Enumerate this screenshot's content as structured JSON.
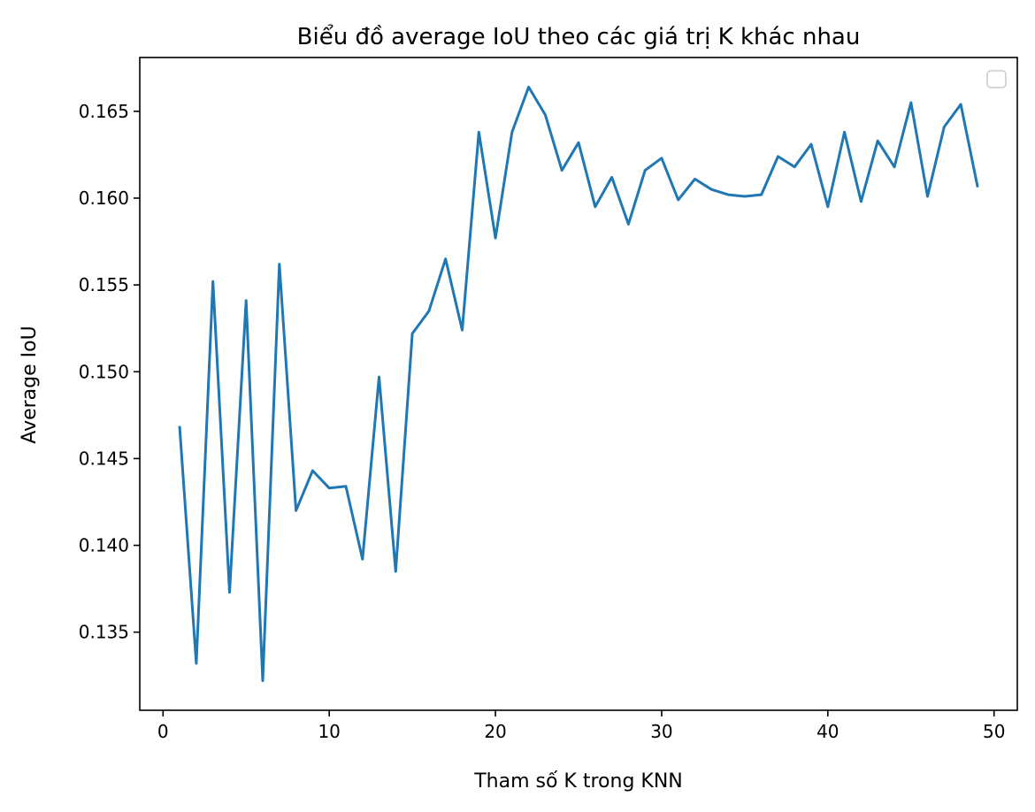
{
  "chart_data": {
    "type": "line",
    "title": "Biểu đồ average IoU theo các giá trị K khác nhau",
    "xlabel": "Tham số K trong KNN",
    "ylabel": "Average IoU",
    "xlim": [
      -1.4,
      51.4
    ],
    "ylim": [
      0.1305,
      0.1681
    ],
    "xticks": [
      0,
      10,
      20,
      30,
      40,
      50
    ],
    "xtick_labels": [
      "0",
      "10",
      "20",
      "30",
      "40",
      "50"
    ],
    "yticks": [
      0.135,
      0.14,
      0.145,
      0.15,
      0.155,
      0.16,
      0.165
    ],
    "ytick_labels": [
      "0.135",
      "0.140",
      "0.145",
      "0.150",
      "0.155",
      "0.160",
      "0.165"
    ],
    "grid": false,
    "legend": {
      "placement": "top-right",
      "entries": []
    },
    "colors": {
      "line": "#1f77b4",
      "axes": "#000000",
      "legend_border": "#cccccc"
    },
    "series": [
      {
        "x": [
          1,
          2,
          3,
          4,
          5,
          6,
          7,
          8,
          9,
          10,
          11,
          12,
          13,
          14,
          15,
          16,
          17,
          18,
          19,
          20,
          21,
          22,
          23,
          24,
          25,
          26,
          27,
          28,
          29,
          30,
          31,
          32,
          33,
          34,
          35,
          36,
          37,
          38,
          39,
          40,
          41,
          42,
          43,
          44,
          45,
          46,
          47,
          48,
          49
        ],
        "values": [
          0.1468,
          0.1332,
          0.1552,
          0.1373,
          0.1541,
          0.1322,
          0.1562,
          0.142,
          0.1443,
          0.1433,
          0.1434,
          0.1392,
          0.1497,
          0.1385,
          0.1522,
          0.1535,
          0.1565,
          0.1524,
          0.1638,
          0.1577,
          0.1638,
          0.1664,
          0.1648,
          0.1616,
          0.1632,
          0.1595,
          0.1612,
          0.1585,
          0.1616,
          0.1623,
          0.1599,
          0.1611,
          0.1605,
          0.1602,
          0.1601,
          0.1602,
          0.1624,
          0.1618,
          0.1631,
          0.1595,
          0.1638,
          0.1598,
          0.1633,
          0.1618,
          0.1655,
          0.1601,
          0.1641,
          0.1654,
          0.1607
        ]
      }
    ]
  }
}
